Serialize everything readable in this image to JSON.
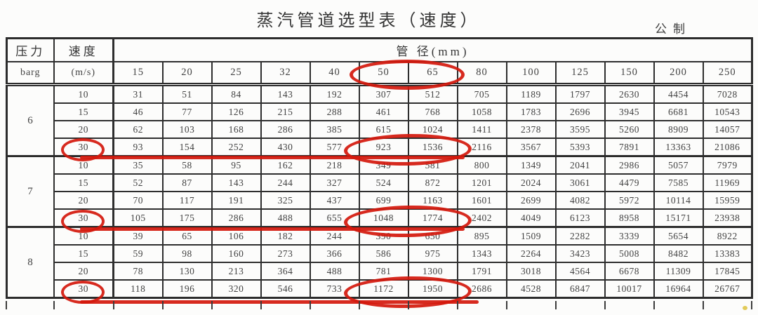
{
  "title": "蒸汽管道选型表（速度）",
  "unit_label": "公制",
  "table": {
    "col1_header": "压力",
    "col1_subheader": "barg",
    "col2_header": "速度",
    "col2_subheader": "(m/s)",
    "span_header": "管 径(mm)",
    "diameters": [
      "15",
      "20",
      "25",
      "32",
      "40",
      "50",
      "65",
      "80",
      "100",
      "125",
      "150",
      "200",
      "250"
    ],
    "blocks": [
      {
        "pressure": "6",
        "rows": [
          {
            "velocity": "10",
            "values": [
              31,
              51,
              84,
              143,
              192,
              307,
              512,
              705,
              1189,
              1797,
              2630,
              4454,
              7028
            ]
          },
          {
            "velocity": "15",
            "values": [
              46,
              77,
              126,
              215,
              288,
              461,
              768,
              1058,
              1783,
              2696,
              3945,
              6681,
              10543
            ]
          },
          {
            "velocity": "20",
            "values": [
              62,
              103,
              168,
              286,
              385,
              615,
              1024,
              1411,
              2378,
              3595,
              5260,
              8909,
              14057
            ]
          },
          {
            "velocity": "30",
            "values": [
              93,
              154,
              252,
              430,
              577,
              923,
              1536,
              2116,
              3567,
              5393,
              7891,
              13363,
              21086
            ]
          }
        ]
      },
      {
        "pressure": "7",
        "rows": [
          {
            "velocity": "10",
            "values": [
              35,
              58,
              95,
              162,
              218,
              349,
              581,
              800,
              1349,
              2041,
              2986,
              5057,
              7979
            ]
          },
          {
            "velocity": "15",
            "values": [
              52,
              87,
              143,
              244,
              327,
              524,
              872,
              1201,
              2024,
              3061,
              4479,
              7585,
              11969
            ]
          },
          {
            "velocity": "20",
            "values": [
              70,
              117,
              191,
              325,
              437,
              699,
              1163,
              1601,
              2699,
              4082,
              5972,
              10114,
              15959
            ]
          },
          {
            "velocity": "30",
            "values": [
              105,
              175,
              286,
              488,
              655,
              1048,
              1774,
              2402,
              4049,
              6123,
              8958,
              15171,
              23938
            ]
          }
        ]
      },
      {
        "pressure": "8",
        "rows": [
          {
            "velocity": "10",
            "values": [
              39,
              65,
              106,
              182,
              244,
              390,
              650,
              895,
              1509,
              2282,
              3339,
              5654,
              8922
            ]
          },
          {
            "velocity": "15",
            "values": [
              59,
              98,
              160,
              273,
              366,
              586,
              975,
              1343,
              2264,
              3423,
              5008,
              8482,
              13383
            ]
          },
          {
            "velocity": "20",
            "values": [
              78,
              130,
              213,
              364,
              488,
              781,
              1300,
              1791,
              3018,
              4564,
              6678,
              11309,
              17845
            ]
          },
          {
            "velocity": "30",
            "values": [
              118,
              196,
              320,
              546,
              733,
              1172,
              1950,
              2686,
              4528,
              6847,
              10017,
              16964,
              26767
            ]
          }
        ]
      }
    ]
  },
  "annotations": {
    "ink_color": "#d4180c",
    "circled_header_diameters": "50 65",
    "circled_velocity_value": "30",
    "circled_value_pairs": [
      "923 1536",
      "1048 1774",
      "1172 1950"
    ]
  }
}
